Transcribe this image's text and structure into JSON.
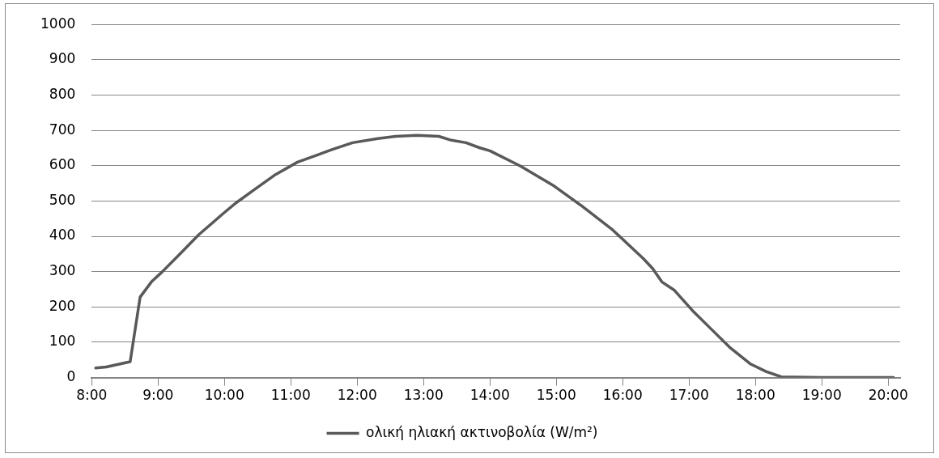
{
  "chart_data": {
    "type": "line",
    "legend": "bottom",
    "grid": "y",
    "marker": "none",
    "line_style": "solid",
    "xlim": [
      8,
      20.18
    ],
    "xticks": [
      {
        "value": 8,
        "label": "8:00"
      },
      {
        "value": 9,
        "label": "9:00"
      },
      {
        "value": 10,
        "label": "10:00"
      },
      {
        "value": 11,
        "label": "11:00"
      },
      {
        "value": 12,
        "label": "12:00"
      },
      {
        "value": 13,
        "label": "13:00"
      },
      {
        "value": 14,
        "label": "14:00"
      },
      {
        "value": 15,
        "label": "15:00"
      },
      {
        "value": 16,
        "label": "16:00"
      },
      {
        "value": 17,
        "label": "17:00"
      },
      {
        "value": 18,
        "label": "18:00"
      },
      {
        "value": 19,
        "label": "19:00"
      },
      {
        "value": 20,
        "label": "20:00"
      }
    ],
    "ylim": [
      0,
      1000
    ],
    "yticks": [
      0,
      100,
      200,
      300,
      400,
      500,
      600,
      700,
      800,
      900,
      1000
    ],
    "series": [
      {
        "name": "ολική ηλιακή ακτινοβολία (W/m²)",
        "color": "#595959",
        "x": [
          8.06,
          8.22,
          8.58,
          8.73,
          8.9,
          9.06,
          9.34,
          9.61,
          9.99,
          10.17,
          10.45,
          10.77,
          11.1,
          11.38,
          11.61,
          11.93,
          12.31,
          12.58,
          12.91,
          13.23,
          13.42,
          13.64,
          13.84,
          14,
          14.46,
          14.97,
          15.39,
          15.85,
          16.31,
          16.45,
          16.59,
          16.78,
          17.05,
          17.33,
          17.61,
          17.93,
          18.16,
          18.39,
          19,
          19.5,
          20.08
        ],
        "values": [
          27,
          30,
          45,
          228,
          271,
          299,
          352,
          404,
          466,
          494,
          532,
          575,
          610,
          629,
          645,
          665,
          677,
          683,
          686,
          683,
          672,
          665,
          651,
          642,
          599,
          542,
          485,
          418,
          337,
          309,
          271,
          247,
          190,
          138,
          86,
          38,
          17,
          2,
          0,
          0,
          0
        ]
      }
    ]
  }
}
